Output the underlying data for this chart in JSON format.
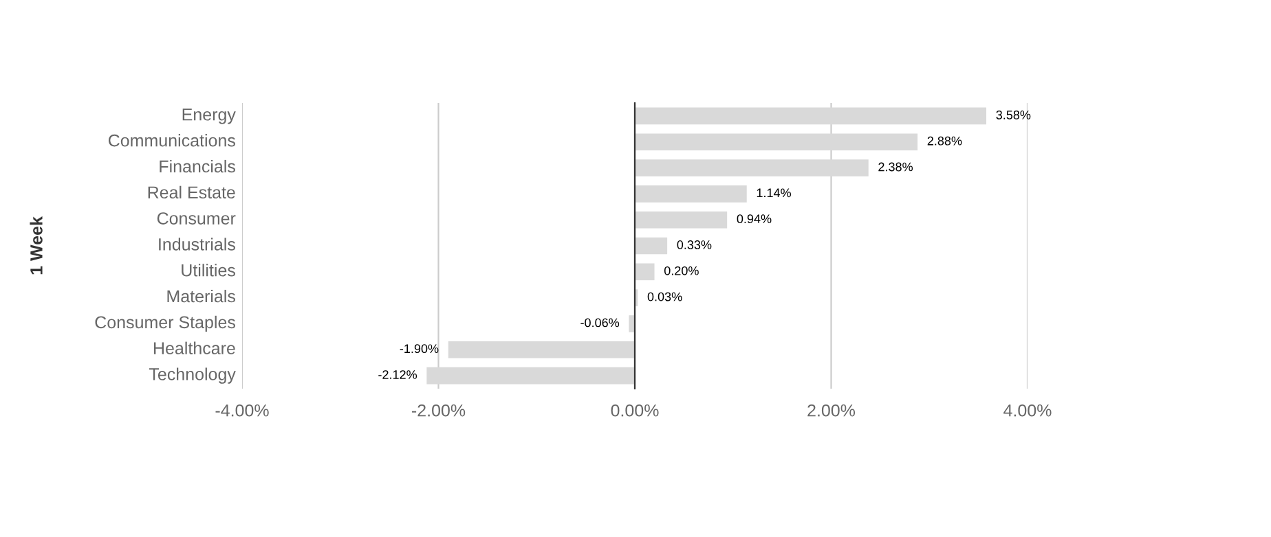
{
  "chart_data": {
    "type": "bar",
    "orientation": "horizontal",
    "ylabel": "1 Week",
    "categories": [
      "Energy",
      "Communications",
      "Financials",
      "Real Estate",
      "Consumer",
      "Industrials",
      "Utilities",
      "Materials",
      "Consumer Staples",
      "Healthcare",
      "Technology"
    ],
    "values": [
      3.58,
      2.88,
      2.38,
      1.14,
      0.94,
      0.33,
      0.2,
      0.03,
      -0.06,
      -1.9,
      -2.12
    ],
    "value_labels": [
      "3.58%",
      "2.88%",
      "2.38%",
      "1.14%",
      "0.94%",
      "0.33%",
      "0.20%",
      "0.03%",
      "-0.06%",
      "-1.90%",
      "-2.12%"
    ],
    "color": "#d9d9d9",
    "xlim": [
      -4,
      4
    ],
    "xticks": [
      {
        "value": -4,
        "label": "-4.00%"
      },
      {
        "value": -2,
        "label": "-2.00%"
      },
      {
        "value": 0,
        "label": "0.00%"
      },
      {
        "value": 2,
        "label": "2.00%"
      },
      {
        "value": 4,
        "label": "4.00%"
      }
    ],
    "grid": "x",
    "legend": false
  }
}
